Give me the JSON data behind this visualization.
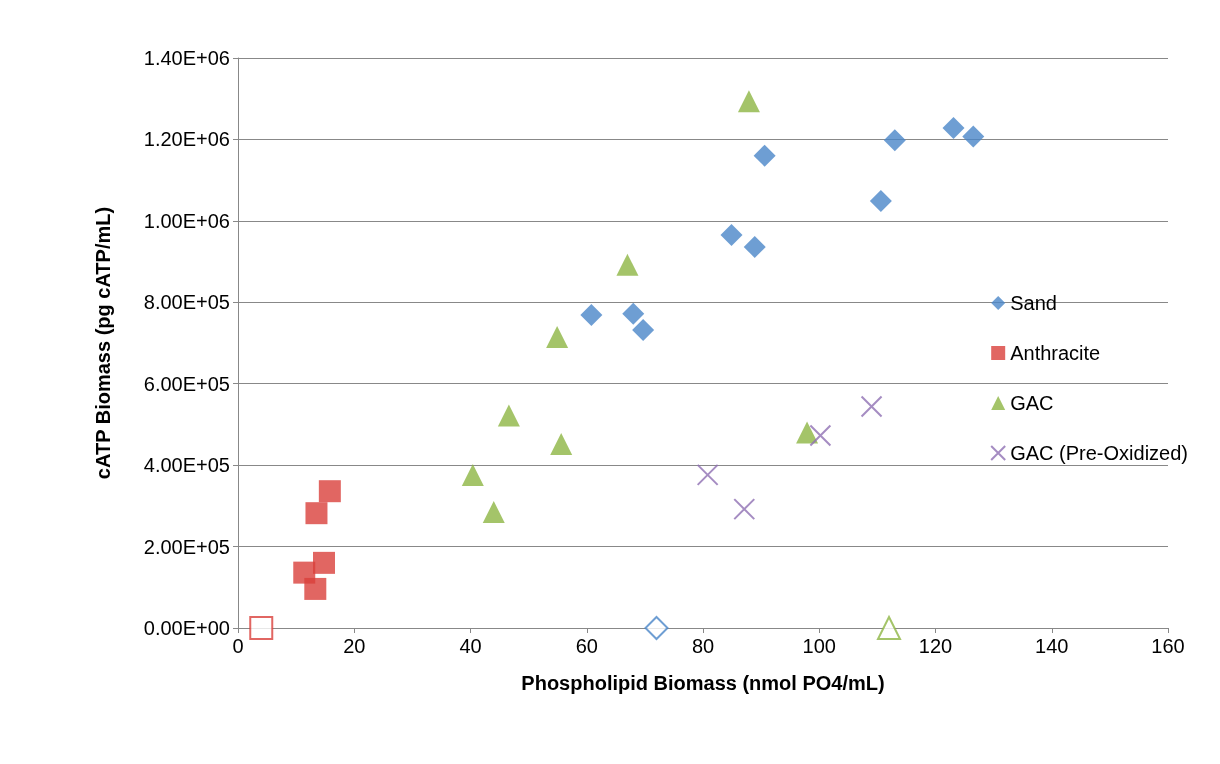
{
  "chart_data": {
    "type": "scatter",
    "xlabel": "Phospholipid Biomass (nmol PO4/mL)",
    "ylabel": "cATP Biomass (pg cATP/mL)",
    "xlim": [
      0,
      160
    ],
    "xticks": [
      0,
      20,
      40,
      60,
      80,
      100,
      120,
      140,
      160
    ],
    "ylim": [
      0,
      1400000
    ],
    "yticks": [
      {
        "value": 0,
        "label": "0.00E+00"
      },
      {
        "value": 200000,
        "label": "2.00E+05"
      },
      {
        "value": 400000,
        "label": "4.00E+05"
      },
      {
        "value": 600000,
        "label": "6.00E+05"
      },
      {
        "value": 800000,
        "label": "8.00E+05"
      },
      {
        "value": 1000000,
        "label": "1.00E+06"
      },
      {
        "value": 1200000,
        "label": "1.20E+06"
      },
      {
        "value": 1400000,
        "label": "1.40E+06"
      }
    ],
    "grid": "y",
    "legend": "right",
    "series": [
      {
        "name": "Sand",
        "color": "#4a86c8",
        "marker": "diamond",
        "x": [
          123.1,
          126.5,
          113.0,
          90.6,
          110.6,
          84.9,
          88.9,
          60.8,
          68.0,
          69.7
        ],
        "values": [
          1228000,
          1207000,
          1198000,
          1160000,
          1049000,
          965000,
          936000,
          769000,
          772000,
          732000
        ]
      },
      {
        "name": "Anthracite",
        "color": "#d9403b",
        "marker": "square",
        "x": [
          15.8,
          13.5,
          11.4,
          14.8,
          13.3
        ],
        "values": [
          336000,
          282000,
          136000,
          160000,
          96000
        ]
      },
      {
        "name": "GAC",
        "color": "#8db544",
        "marker": "triangle",
        "x": [
          87.9,
          67.0,
          54.9,
          46.6,
          55.6,
          40.4,
          44.0,
          97.9
        ],
        "values": [
          1294000,
          892000,
          715000,
          522000,
          452000,
          376000,
          285000,
          480000
        ]
      },
      {
        "name": "GAC (Pre-Oxidized)",
        "color": "#8e6fb3",
        "marker": "cross",
        "x": [
          109.0,
          100.2,
          80.8,
          87.1
        ],
        "values": [
          544000,
          473000,
          376000,
          292000
        ]
      },
      {
        "color": "#4a86c8",
        "marker": "diamond",
        "x": [
          72
        ],
        "values": [
          0
        ]
      },
      {
        "color": "#d9403b",
        "marker": "square",
        "x": [
          4
        ],
        "values": [
          0
        ]
      },
      {
        "color": "#8db544",
        "marker": "triangle",
        "x": [
          112
        ],
        "values": [
          0
        ]
      }
    ]
  }
}
